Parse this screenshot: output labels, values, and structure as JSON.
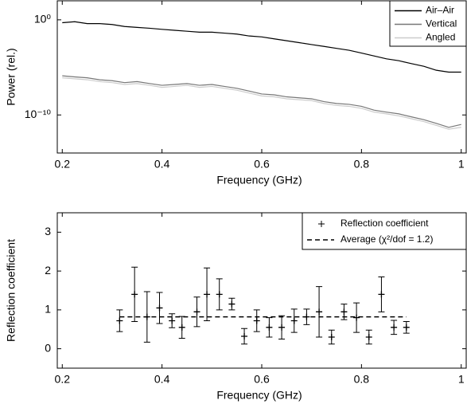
{
  "chart_data": [
    {
      "type": "line",
      "log_y": true,
      "legend": "upper right",
      "x_label": "Frequency (GHz)",
      "y_label": "Power (rel.)",
      "xlim": [
        0.19,
        1.01
      ],
      "xticks": [
        0.2,
        0.4,
        0.6,
        0.8,
        1
      ],
      "ylim": [
        1e-14,
        100
      ],
      "yticks": [
        {
          "value": 1,
          "label": "10⁰"
        },
        {
          "value": 1e-10,
          "label": "10⁻¹⁰"
        }
      ],
      "x": [
        0.2,
        0.225,
        0.25,
        0.275,
        0.3,
        0.325,
        0.35,
        0.375,
        0.4,
        0.425,
        0.45,
        0.475,
        0.5,
        0.525,
        0.55,
        0.575,
        0.6,
        0.625,
        0.65,
        0.675,
        0.7,
        0.725,
        0.75,
        0.775,
        0.8,
        0.825,
        0.85,
        0.875,
        0.9,
        0.925,
        0.95,
        0.975,
        1.0
      ],
      "series": [
        {
          "name": "Air–Air",
          "color": "#000000",
          "values": [
            0.5,
            0.63,
            0.4,
            0.4,
            0.32,
            0.2,
            0.16,
            0.13,
            0.1,
            0.08,
            0.063,
            0.05,
            0.05,
            0.04,
            0.032,
            0.02,
            0.016,
            0.01,
            0.0063,
            0.004,
            0.0025,
            0.0016,
            0.001,
            0.00063,
            0.00032,
            0.00016,
            8e-05,
            5e-05,
            2.5e-05,
            1.3e-05,
            5e-06,
            3.2e-06,
            3.2e-06
          ]
        },
        {
          "name": "Vertical",
          "color": "#777777",
          "values": [
            1.3e-06,
            1e-06,
            8e-07,
            5e-07,
            4e-07,
            2.5e-07,
            3.2e-07,
            2e-07,
            1.3e-07,
            1.6e-07,
            2e-07,
            1.3e-07,
            1.6e-07,
            1e-07,
            6.3e-08,
            3.2e-08,
            1.6e-08,
            1.3e-08,
            8e-09,
            6.3e-09,
            5e-09,
            2.5e-09,
            1.6e-09,
            1.3e-09,
            8e-10,
            3.2e-10,
            2e-10,
            1.3e-10,
            6.3e-11,
            3.2e-11,
            1.3e-11,
            5e-12,
            1e-11
          ]
        },
        {
          "name": "Angled",
          "color": "#cccccc",
          "values": [
            8e-07,
            6.3e-07,
            5e-07,
            3.2e-07,
            2.5e-07,
            1.6e-07,
            2e-07,
            1.3e-07,
            8e-08,
            1e-07,
            1.3e-07,
            8e-08,
            1e-07,
            6.3e-08,
            4e-08,
            2e-08,
            1e-08,
            8e-09,
            5e-09,
            4e-09,
            3.2e-09,
            1.6e-09,
            1e-09,
            8e-10,
            5e-10,
            2e-10,
            1.3e-10,
            8e-11,
            4e-11,
            2e-11,
            8e-12,
            3.2e-12,
            5e-12
          ]
        }
      ]
    },
    {
      "type": "errorbar",
      "legend": "upper right",
      "x_label": "Frequency (GHz)",
      "y_label": "Reflection coefficient",
      "xlim": [
        0.19,
        1.01
      ],
      "xticks": [
        0.2,
        0.4,
        0.6,
        0.8,
        1
      ],
      "ylim": [
        -0.5,
        3.5
      ],
      "yticks": [
        0,
        1,
        2,
        3
      ],
      "series": [
        {
          "name": "Reflection coefficient",
          "color": "#000000",
          "marker": "+",
          "x": [
            0.315,
            0.345,
            0.37,
            0.395,
            0.42,
            0.44,
            0.47,
            0.49,
            0.515,
            0.54,
            0.565,
            0.59,
            0.615,
            0.64,
            0.665,
            0.69,
            0.715,
            0.74,
            0.765,
            0.79,
            0.815,
            0.84,
            0.865,
            0.89
          ],
          "values": [
            0.72,
            1.4,
            0.82,
            1.05,
            0.72,
            0.55,
            0.95,
            1.4,
            1.4,
            1.15,
            0.32,
            0.72,
            0.55,
            0.55,
            0.72,
            0.82,
            0.95,
            0.3,
            0.95,
            0.8,
            0.3,
            1.4,
            0.55,
            0.55
          ],
          "errors": [
            0.28,
            0.7,
            0.65,
            0.4,
            0.18,
            0.28,
            0.38,
            0.68,
            0.4,
            0.15,
            0.2,
            0.28,
            0.25,
            0.3,
            0.3,
            0.2,
            0.65,
            0.18,
            0.2,
            0.38,
            0.18,
            0.45,
            0.18,
            0.15
          ]
        },
        {
          "name": "Average (χ²/dof = 1.2)",
          "color": "#000000",
          "dashed": true,
          "x": [
            0.315,
            0.89
          ],
          "values": [
            0.82,
            0.82
          ]
        }
      ]
    }
  ]
}
